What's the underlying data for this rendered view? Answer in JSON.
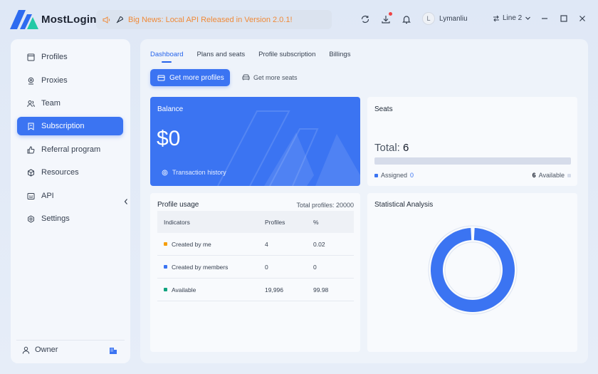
{
  "app": {
    "name": "MostLogin"
  },
  "header": {
    "news": "Big News: Local API Released in Version 2.0.1!",
    "user": {
      "initial": "L",
      "name": "Lymanliu"
    },
    "line": "Line 2"
  },
  "sidebar": {
    "items": [
      {
        "label": "Profiles",
        "icon": "window-icon"
      },
      {
        "label": "Proxies",
        "icon": "location-icon"
      },
      {
        "label": "Team",
        "icon": "team-icon"
      },
      {
        "label": "Subscription",
        "icon": "bookmark-icon",
        "active": true
      },
      {
        "label": "Referral program",
        "icon": "thumbs-up-icon"
      },
      {
        "label": "Resources",
        "icon": "cube-icon"
      },
      {
        "label": "API",
        "icon": "api-icon"
      },
      {
        "label": "Settings",
        "icon": "gear-icon"
      }
    ],
    "footer": {
      "role": "Owner"
    }
  },
  "main": {
    "tabs": [
      {
        "label": "Dashboard",
        "active": true
      },
      {
        "label": "Plans and seats"
      },
      {
        "label": "Profile subscription"
      },
      {
        "label": "Billings"
      }
    ],
    "primary_button": "Get more profiles",
    "secondary_button": "Get more seats",
    "balance": {
      "title": "Balance",
      "amount": "$0",
      "history": "Transaction history"
    },
    "seats": {
      "title": "Seats",
      "total_label": "Total:",
      "total_value": "6",
      "assigned_label": "Assigned",
      "assigned_value": "0",
      "available_value": "6",
      "available_label": "Available"
    },
    "usage": {
      "title": "Profile usage",
      "total": "Total profiles: 20000",
      "columns": [
        "Indicators",
        "Profiles",
        "%"
      ],
      "rows": [
        {
          "indicator": "Created by me",
          "profiles": "4",
          "percent": "0.02",
          "color": "#f59e0b"
        },
        {
          "indicator": "Created by members",
          "profiles": "0",
          "percent": "0",
          "color": "#3b74f2"
        },
        {
          "indicator": "Available",
          "profiles": "19,996",
          "percent": "99.98",
          "color": "#10a37f"
        }
      ]
    },
    "stats": {
      "title": "Statistical Analysis"
    }
  },
  "colors": {
    "accent": "#3b74f2",
    "warning": "#f08a38"
  }
}
